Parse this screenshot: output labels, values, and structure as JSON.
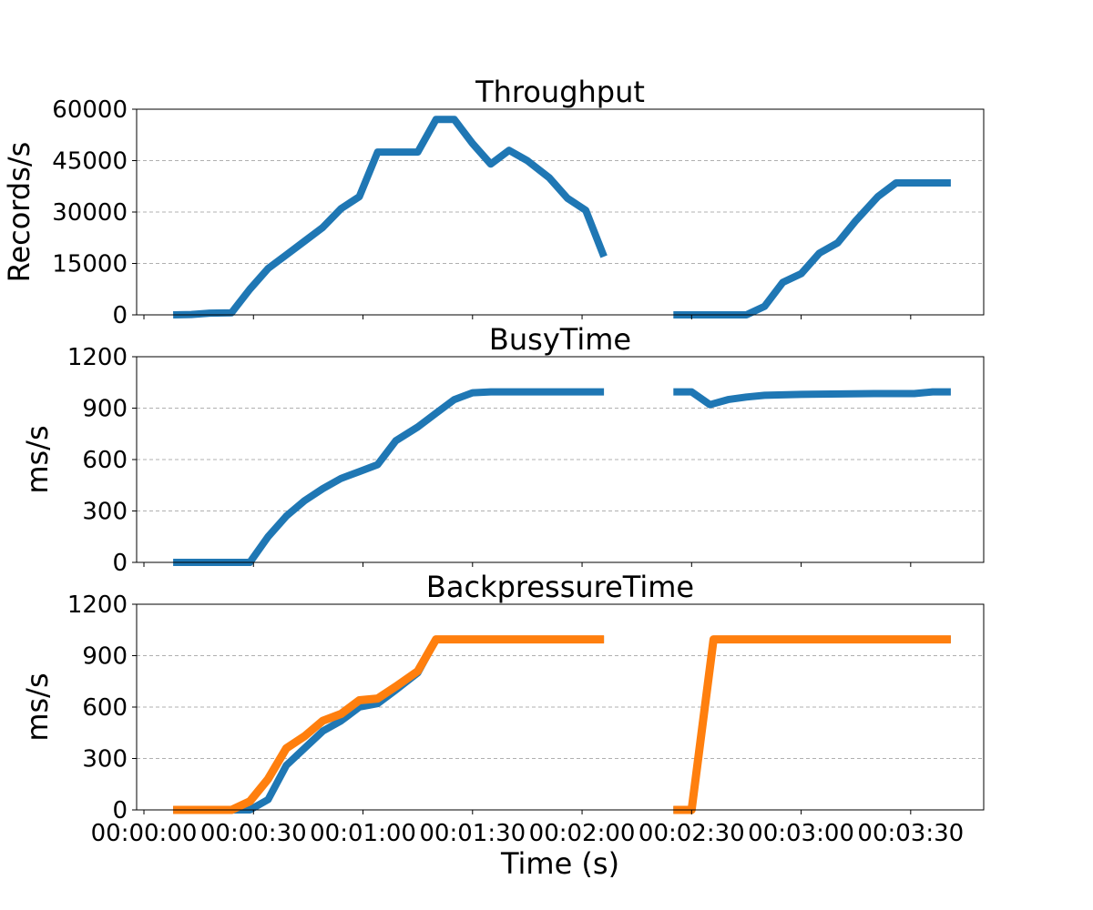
{
  "chart_data": [
    {
      "type": "line",
      "title": "Throughput",
      "ylabel": "Records/s",
      "xlabel": "",
      "xlim": [
        -2,
        230
      ],
      "ylim": [
        0,
        60000
      ],
      "yticks": [
        0,
        15000,
        30000,
        45000,
        60000
      ],
      "ytick_labels": [
        "0",
        "15000",
        "30000",
        "45000",
        "60000"
      ],
      "xticks": [
        0,
        30,
        60,
        90,
        120,
        150,
        180,
        210
      ],
      "xtick_labels": [],
      "grid": "y-dashed",
      "series": [
        {
          "color": "#1f77b4",
          "segments": [
            [
              [
                8,
                0
              ],
              [
                13,
                100
              ],
              [
                18,
                500
              ],
              [
                24,
                600
              ],
              [
                29,
                7500
              ],
              [
                34,
                13500
              ],
              [
                39,
                17500
              ],
              [
                44,
                21500
              ],
              [
                49,
                25500
              ],
              [
                54,
                31000
              ],
              [
                59,
                34500
              ],
              [
                64,
                47500
              ],
              [
                75,
                47500
              ],
              [
                80,
                57000
              ],
              [
                85,
                57000
              ],
              [
                90,
                50000
              ],
              [
                95,
                44000
              ],
              [
                100,
                48000
              ],
              [
                105,
                45000
              ],
              [
                111,
                40000
              ],
              [
                116,
                34000
              ],
              [
                121,
                30500
              ],
              [
                126,
                17000
              ]
            ],
            [
              [
                145,
                0
              ],
              [
                165,
                0
              ],
              [
                170,
                2500
              ],
              [
                175,
                9500
              ],
              [
                180,
                12000
              ],
              [
                185,
                18000
              ],
              [
                190,
                21000
              ],
              [
                195,
                27500
              ],
              [
                201,
                34500
              ],
              [
                206,
                38500
              ],
              [
                221,
                38500
              ]
            ]
          ]
        }
      ]
    },
    {
      "type": "line",
      "title": "BusyTime",
      "ylabel": "ms/s",
      "xlabel": "",
      "xlim": [
        -2,
        230
      ],
      "ylim": [
        0,
        1200
      ],
      "yticks": [
        0,
        300,
        600,
        900,
        1200
      ],
      "ytick_labels": [
        "0",
        "300",
        "600",
        "900",
        "1200"
      ],
      "xticks": [
        0,
        30,
        60,
        90,
        120,
        150,
        180,
        210
      ],
      "xtick_labels": [],
      "grid": "y-dashed",
      "series": [
        {
          "color": "#1f77b4",
          "segments": [
            [
              [
                8,
                0
              ],
              [
                29,
                0
              ],
              [
                34,
                150
              ],
              [
                39,
                270
              ],
              [
                44,
                360
              ],
              [
                49,
                430
              ],
              [
                54,
                490
              ],
              [
                59,
                530
              ],
              [
                64,
                570
              ],
              [
                69,
                710
              ],
              [
                75,
                790
              ],
              [
                80,
                870
              ],
              [
                85,
                950
              ],
              [
                90,
                990
              ],
              [
                95,
                995
              ],
              [
                105,
                995
              ],
              [
                126,
                995
              ]
            ],
            [
              [
                145,
                995
              ],
              [
                150,
                995
              ],
              [
                155,
                920
              ],
              [
                160,
                950
              ],
              [
                165,
                965
              ],
              [
                170,
                975
              ],
              [
                180,
                980
              ],
              [
                200,
                985
              ],
              [
                211,
                985
              ],
              [
                216,
                995
              ],
              [
                221,
                995
              ]
            ]
          ]
        }
      ]
    },
    {
      "type": "line",
      "title": "BackpressureTime",
      "ylabel": "ms/s",
      "xlabel": "Time (s)",
      "xlim": [
        -2,
        230
      ],
      "ylim": [
        0,
        1200
      ],
      "yticks": [
        0,
        300,
        600,
        900,
        1200
      ],
      "ytick_labels": [
        "0",
        "300",
        "600",
        "900",
        "1200"
      ],
      "xticks": [
        0,
        30,
        60,
        90,
        120,
        150,
        180,
        210
      ],
      "xtick_labels": [
        "00:00:00",
        "00:00:30",
        "00:01:00",
        "00:01:30",
        "00:02:00",
        "00:02:30",
        "00:03:00",
        "00:03:30"
      ],
      "grid": "y-dashed",
      "series": [
        {
          "color": "#1f77b4",
          "segments": [
            [
              [
                8,
                0
              ],
              [
                24,
                0
              ],
              [
                29,
                0
              ],
              [
                34,
                60
              ],
              [
                39,
                260
              ],
              [
                44,
                360
              ],
              [
                49,
                460
              ],
              [
                54,
                520
              ],
              [
                59,
                600
              ],
              [
                64,
                620
              ],
              [
                69,
                700
              ],
              [
                75,
                800
              ],
              [
                80,
                995
              ],
              [
                126,
                995
              ]
            ],
            [
              [
                145,
                0
              ],
              [
                150,
                0
              ],
              [
                156,
                995
              ],
              [
                221,
                995
              ]
            ]
          ]
        },
        {
          "color": "#ff7f0e",
          "segments": [
            [
              [
                8,
                0
              ],
              [
                24,
                0
              ],
              [
                29,
                50
              ],
              [
                34,
                180
              ],
              [
                39,
                360
              ],
              [
                44,
                430
              ],
              [
                49,
                520
              ],
              [
                54,
                560
              ],
              [
                59,
                640
              ],
              [
                64,
                650
              ],
              [
                69,
                720
              ],
              [
                75,
                810
              ],
              [
                80,
                995
              ],
              [
                126,
                995
              ]
            ],
            [
              [
                145,
                0
              ],
              [
                150,
                0
              ],
              [
                156,
                995
              ],
              [
                221,
                995
              ]
            ]
          ]
        }
      ]
    }
  ]
}
